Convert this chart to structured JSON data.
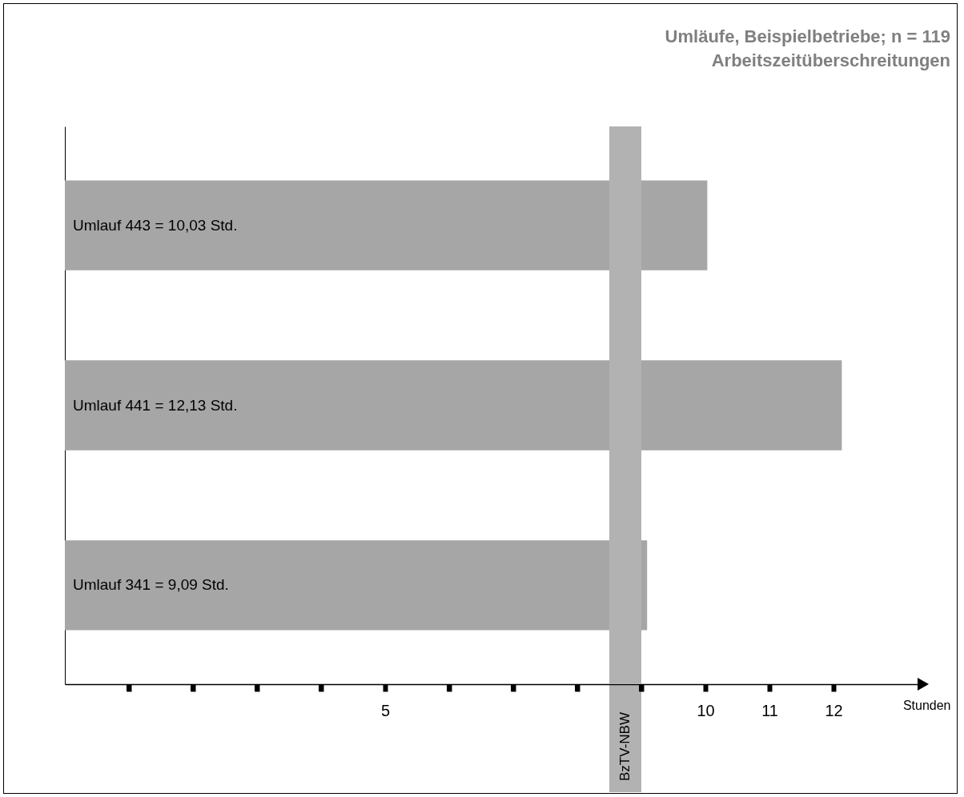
{
  "chart_data": {
    "type": "bar",
    "orientation": "horizontal",
    "title": "Umläufe, Beispielbetriebe; n = 119",
    "subtitle": "Arbeitszeitüberschreitungen",
    "xlabel": "Stunden",
    "categories": [
      null,
      null,
      null
    ],
    "values": [
      10.03,
      12.13,
      9.09
    ],
    "color": "#a6a6a6",
    "value_labels": [
      "Umlauf 443 = 10,03 Std.",
      "Umlauf 441 = 12,13 Std.",
      "Umlauf 341 = 9,09 Std."
    ],
    "xlim": [
      0,
      13.4
    ],
    "xticks": [
      {
        "value": 1,
        "label": null
      },
      {
        "value": 2,
        "label": null
      },
      {
        "value": 3,
        "label": null
      },
      {
        "value": 4,
        "label": null
      },
      5,
      {
        "value": 6,
        "label": null
      },
      {
        "value": 7,
        "label": null
      },
      {
        "value": 8,
        "label": null
      },
      {
        "value": 9,
        "label": null
      },
      10,
      11,
      12
    ],
    "ref_lines": [
      {
        "axis": "x",
        "value": 8.75,
        "label": "BzTV-NBW",
        "color": "#b2b2b2"
      }
    ],
    "grid": false
  }
}
